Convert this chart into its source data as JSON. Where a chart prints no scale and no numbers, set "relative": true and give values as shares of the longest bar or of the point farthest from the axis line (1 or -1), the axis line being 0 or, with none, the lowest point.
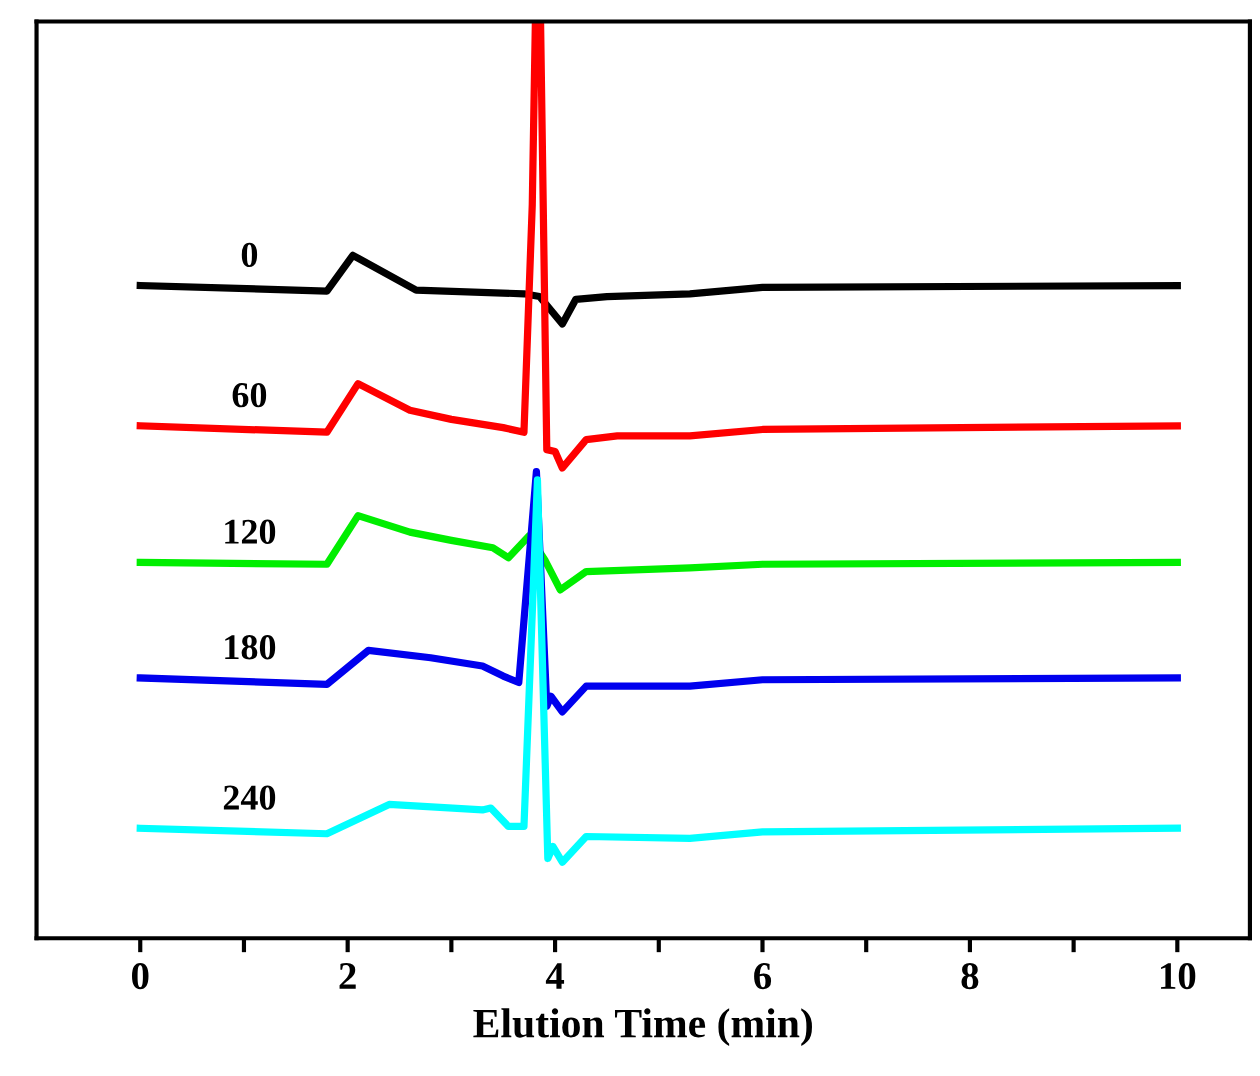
{
  "chart_data": {
    "type": "line",
    "relative": true,
    "xlabel": "Elution Time (min)",
    "xlim": [
      -1,
      10.7
    ],
    "xticks": [
      0,
      {
        "value": 1,
        "label": null
      },
      2,
      {
        "value": 3,
        "label": null
      },
      4,
      {
        "value": 5,
        "label": null
      },
      6,
      {
        "value": 7,
        "label": null
      },
      8,
      {
        "value": 9,
        "label": null
      },
      10
    ],
    "ylim": [
      0,
      1
    ],
    "grid": false,
    "legend": false,
    "marker": "none",
    "line_style": "solid",
    "series": [
      {
        "name": "0",
        "color": "#000000",
        "x": [
          0,
          1.8,
          2.05,
          2.66,
          3.7,
          3.85,
          4.07,
          4.2,
          4.5,
          5.3,
          6,
          10
        ],
        "values": [
          0.712,
          0.706,
          0.745,
          0.707,
          0.703,
          0.7,
          0.67,
          0.697,
          0.7,
          0.703,
          0.71,
          0.712
        ]
      },
      {
        "name": "60",
        "color": "#ff0000",
        "x": [
          0,
          1.8,
          2.1,
          2.6,
          3.0,
          3.5,
          3.7,
          3.78,
          3.81,
          3.86,
          3.92,
          4.0,
          4.07,
          4.3,
          4.6,
          5.3,
          6,
          10
        ],
        "values": [
          0.559,
          0.552,
          0.605,
          0.576,
          0.566,
          0.557,
          0.552,
          0.8,
          1.0,
          1.0,
          0.533,
          0.531,
          0.513,
          0.544,
          0.548,
          0.548,
          0.555,
          0.559
        ]
      },
      {
        "name": "120",
        "color": "#00ee00",
        "x": [
          0,
          1.8,
          2.1,
          2.6,
          3.0,
          3.4,
          3.55,
          3.75,
          3.9,
          4.05,
          4.3,
          5.3,
          6,
          10
        ],
        "values": [
          0.41,
          0.408,
          0.461,
          0.443,
          0.434,
          0.426,
          0.415,
          0.439,
          0.413,
          0.38,
          0.4,
          0.404,
          0.408,
          0.41
        ]
      },
      {
        "name": "180",
        "color": "#0000ee",
        "x": [
          0,
          1.8,
          2.2,
          2.8,
          3.3,
          3.5,
          3.65,
          3.82,
          3.92,
          3.96,
          4.07,
          4.3,
          5.3,
          6,
          10
        ],
        "values": [
          0.284,
          0.277,
          0.314,
          0.306,
          0.297,
          0.286,
          0.279,
          0.509,
          0.253,
          0.264,
          0.247,
          0.275,
          0.275,
          0.282,
          0.284
        ]
      },
      {
        "name": "240",
        "color": "#00ffff",
        "x": [
          0,
          1.8,
          2.4,
          3.3,
          3.38,
          3.55,
          3.7,
          3.83,
          3.93,
          3.98,
          4.07,
          4.3,
          5.3,
          6,
          10
        ],
        "values": [
          0.12,
          0.114,
          0.146,
          0.14,
          0.142,
          0.122,
          0.122,
          0.5,
          0.087,
          0.1,
          0.083,
          0.111,
          0.109,
          0.116,
          0.12
        ]
      }
    ]
  }
}
